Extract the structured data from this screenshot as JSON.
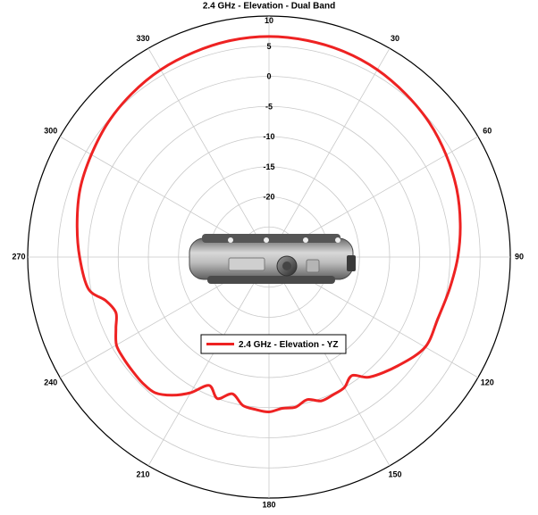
{
  "chart_data": {
    "type": "polar",
    "title": "2.4 GHz - Elevation - Dual Band",
    "angle_ticks": [
      "0",
      "30",
      "60",
      "90",
      "120",
      "150",
      "180",
      "210",
      "240",
      "270",
      "300",
      "330"
    ],
    "radial_tick_labels": [
      "10",
      "5",
      "0",
      "-5",
      "-10",
      "-15",
      "-20"
    ],
    "radial_range_db": [
      -30,
      10
    ],
    "grid": true,
    "legend": {
      "position": "center-bottom",
      "label": "2.4 GHz - Elevation - YZ"
    },
    "series": [
      {
        "name": "2.4 GHz - Elevation - YZ",
        "color": "#ee2222",
        "angle_deg": [
          0,
          10,
          20,
          30,
          40,
          50,
          60,
          70,
          80,
          90,
          100,
          110,
          120,
          130,
          140,
          145,
          150,
          155,
          160,
          165,
          170,
          175,
          180,
          185,
          190,
          195,
          200,
          205,
          210,
          215,
          220,
          225,
          230,
          235,
          240,
          245,
          250,
          255,
          260,
          270,
          280,
          290,
          300,
          310,
          320,
          330,
          340,
          350
        ],
        "gain_db": [
          6.6,
          6.5,
          6.3,
          5.9,
          5.3,
          4.7,
          3.9,
          3.1,
          2.2,
          1.3,
          0.4,
          -0.2,
          -0.1,
          -2.0,
          -4.0,
          -6.0,
          -5.0,
          -4.8,
          -4.6,
          -5.5,
          -4.7,
          -4.8,
          -4.3,
          -4.6,
          -5.0,
          -6.5,
          -5.0,
          -6.5,
          -4.0,
          -2.0,
          -0.6,
          -0.4,
          -0.5,
          -0.6,
          -0.8,
          -2.0,
          -3.0,
          -2.0,
          0.4,
          1.4,
          2.3,
          3.3,
          4.0,
          4.8,
          5.4,
          5.9,
          6.2,
          6.5
        ]
      }
    ]
  }
}
